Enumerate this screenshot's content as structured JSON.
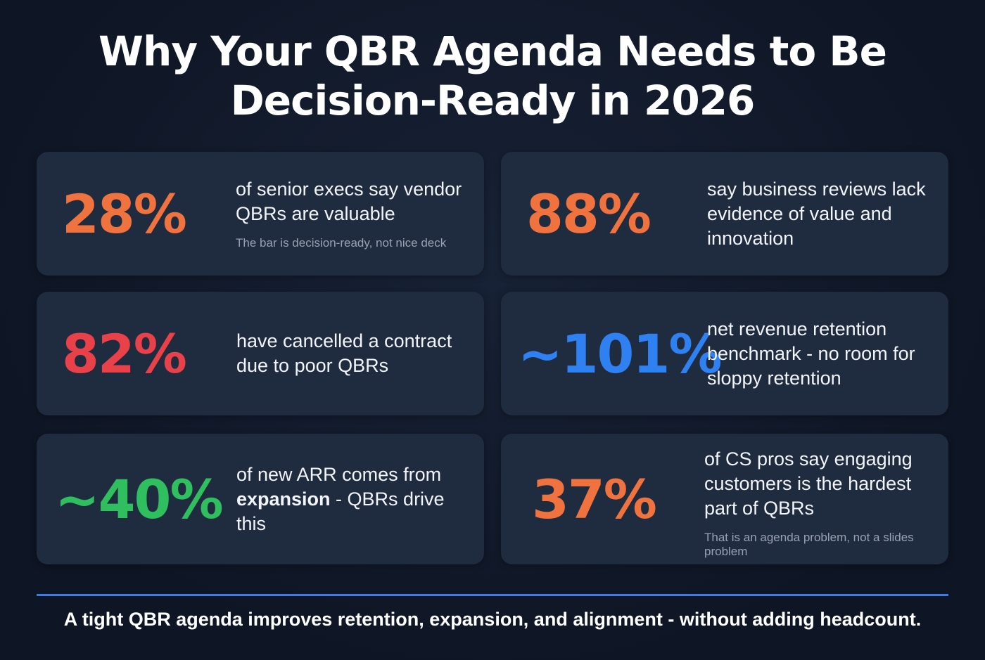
{
  "title": {
    "line1": "Why Your QBR Agenda Needs to Be",
    "line2": "Decision-Ready in 2026"
  },
  "colors": {
    "orange": "#f0733f",
    "red": "#e8414a",
    "blue": "#2f80f0",
    "green": "#2fbf5f",
    "accent_line": "#3b7de8"
  },
  "stats": [
    {
      "value": "28%",
      "text": "of senior execs say vendor QBRs are valuable",
      "note": "The bar is decision-ready, not nice deck"
    },
    {
      "value": "88%",
      "text": "say business reviews lack evidence of value and innovation"
    },
    {
      "value": "82%",
      "text": "have cancelled a contract due to poor QBRs"
    },
    {
      "value": "~101%",
      "text": "net revenue retention benchmark - no room for sloppy retention"
    },
    {
      "value": "~40%",
      "text_before": "of new ARR comes from",
      "text_bold": "expansion",
      "text_after": " - QBRs drive this"
    },
    {
      "value": "37%",
      "text": "of CS pros say engaging customers is the hardest part of QBRs",
      "note": "That is an agenda problem, not a slides problem"
    }
  ],
  "footer": "A tight QBR agenda improves retention, expansion, and alignment - without adding headcount."
}
